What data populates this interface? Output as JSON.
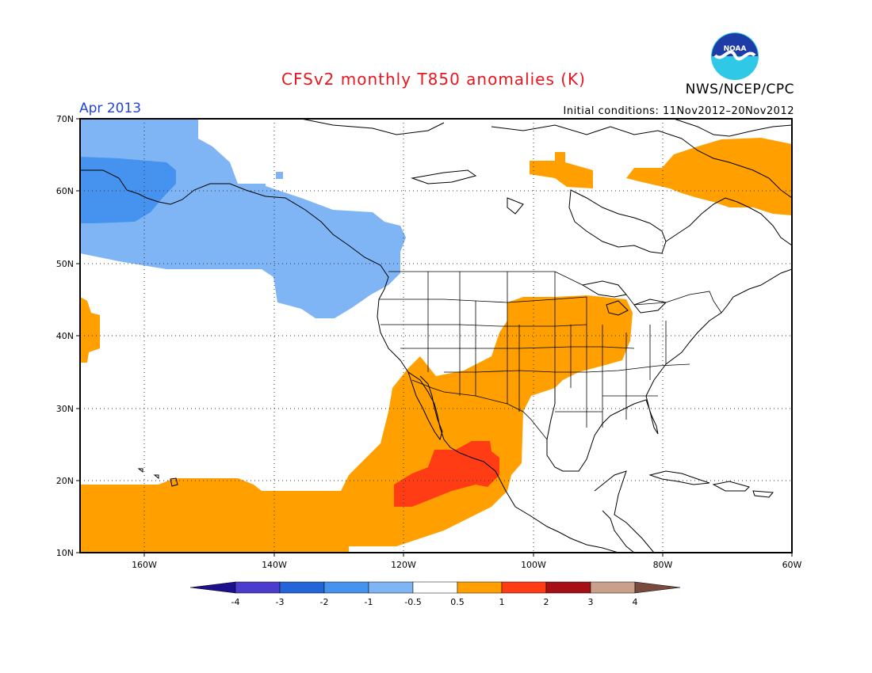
{
  "header": {
    "title": "CFSv2 monthly T850 anomalies (K)",
    "org": "NWS/NCEP/CPC",
    "month": "Apr 2013",
    "initial_conditions": "Initial conditions: 11Nov2012–20Nov2012",
    "logo_text": "NOAA"
  },
  "map": {
    "lon_range": [
      -170,
      -60
    ],
    "lat_range": [
      10,
      70
    ],
    "lat_labels": [
      "70N",
      "60N",
      "50N",
      "40N",
      "30N",
      "20N",
      "10N"
    ],
    "lon_labels": [
      "160W",
      "140W",
      "120W",
      "100W",
      "80W",
      "60W"
    ],
    "grid": "dotted",
    "anomaly_regions": [
      {
        "name": "northeast-pacific-alaska-cool",
        "category": "-1 to -0.5",
        "color": "#7fb5f5"
      },
      {
        "name": "bering-sea-cool",
        "category": "-2 to -1",
        "color": "#4593ee"
      },
      {
        "name": "central-us-warm",
        "category": "0.5 to 1",
        "color": "#ffa000"
      },
      {
        "name": "eastern-canada-warm",
        "category": "0.5 to 1",
        "color": "#ffa000"
      },
      {
        "name": "subtropical-pacific-warm",
        "category": "0.5 to 1",
        "color": "#ffa000"
      },
      {
        "name": "baja-offshore-warm",
        "category": "1 to 2",
        "color": "#ff3c14"
      }
    ]
  },
  "colorbar": {
    "labels": [
      "-4",
      "-3",
      "-2",
      "-1",
      "-0.5",
      "0.5",
      "1",
      "2",
      "3",
      "4"
    ],
    "colors": [
      "#1e0f8c",
      "#4b3ccd",
      "#2364d8",
      "#4593ee",
      "#7fb5f5",
      "#ffffff",
      "#ffa000",
      "#ff3c14",
      "#a50f15",
      "#c8a08c",
      "#784b3c"
    ]
  }
}
